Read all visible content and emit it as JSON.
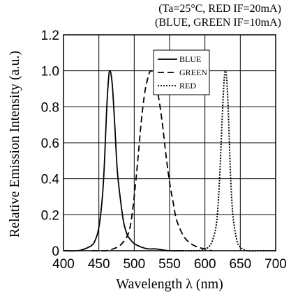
{
  "conditions": {
    "line1": "(Ta=25°C,   RED IF=20mA)",
    "line2": "(BLUE, GREEN IF=10mA)"
  },
  "chart_data": {
    "type": "line",
    "title": "",
    "xlabel": "Wavelength λ  (nm)",
    "ylabel": "Relative Emission Intensity   (a.u.)",
    "xlim": [
      400,
      700
    ],
    "ylim": [
      0,
      1.2
    ],
    "x_ticks": [
      "400",
      "450",
      "500",
      "550",
      "600",
      "650",
      "700"
    ],
    "y_ticks": [
      "0",
      "0.2",
      "0.4",
      "0.6",
      "0.8",
      "1.0",
      "1.2"
    ],
    "grid": true,
    "legend_position": "top-center-right",
    "series": [
      {
        "name": "BLUE",
        "style": "solid",
        "x": [
          400,
          420,
          430,
          440,
          445,
          450,
          455,
          458,
          461,
          464,
          466,
          468,
          470,
          473,
          476,
          480,
          485,
          490,
          495,
          500,
          510,
          520,
          530,
          550,
          570
        ],
        "y": [
          0.0,
          0.0,
          0.01,
          0.03,
          0.06,
          0.13,
          0.3,
          0.5,
          0.78,
          0.97,
          1.0,
          0.96,
          0.87,
          0.66,
          0.45,
          0.3,
          0.16,
          0.09,
          0.06,
          0.04,
          0.02,
          0.01,
          0.01,
          0.0,
          0.0
        ]
      },
      {
        "name": "GREEN",
        "style": "dashed",
        "x": [
          440,
          460,
          470,
          480,
          490,
          495,
          500,
          505,
          510,
          515,
          520,
          523,
          526,
          530,
          535,
          540,
          545,
          550,
          555,
          560,
          570,
          580,
          590,
          600,
          610
        ],
        "y": [
          0.0,
          0.0,
          0.01,
          0.03,
          0.08,
          0.15,
          0.3,
          0.5,
          0.72,
          0.88,
          0.97,
          1.0,
          0.99,
          0.94,
          0.84,
          0.7,
          0.53,
          0.38,
          0.27,
          0.17,
          0.08,
          0.04,
          0.02,
          0.01,
          0.0
        ]
      },
      {
        "name": "RED",
        "style": "dotted",
        "x": [
          560,
          590,
          600,
          605,
          610,
          615,
          618,
          621,
          624,
          627,
          629,
          631,
          633,
          635,
          637,
          640,
          645,
          650,
          660,
          680,
          700
        ],
        "y": [
          0.0,
          0.0,
          0.01,
          0.02,
          0.05,
          0.12,
          0.22,
          0.42,
          0.7,
          0.94,
          1.0,
          0.94,
          0.78,
          0.55,
          0.35,
          0.18,
          0.06,
          0.02,
          0.0,
          0.0,
          0.0
        ]
      }
    ]
  }
}
